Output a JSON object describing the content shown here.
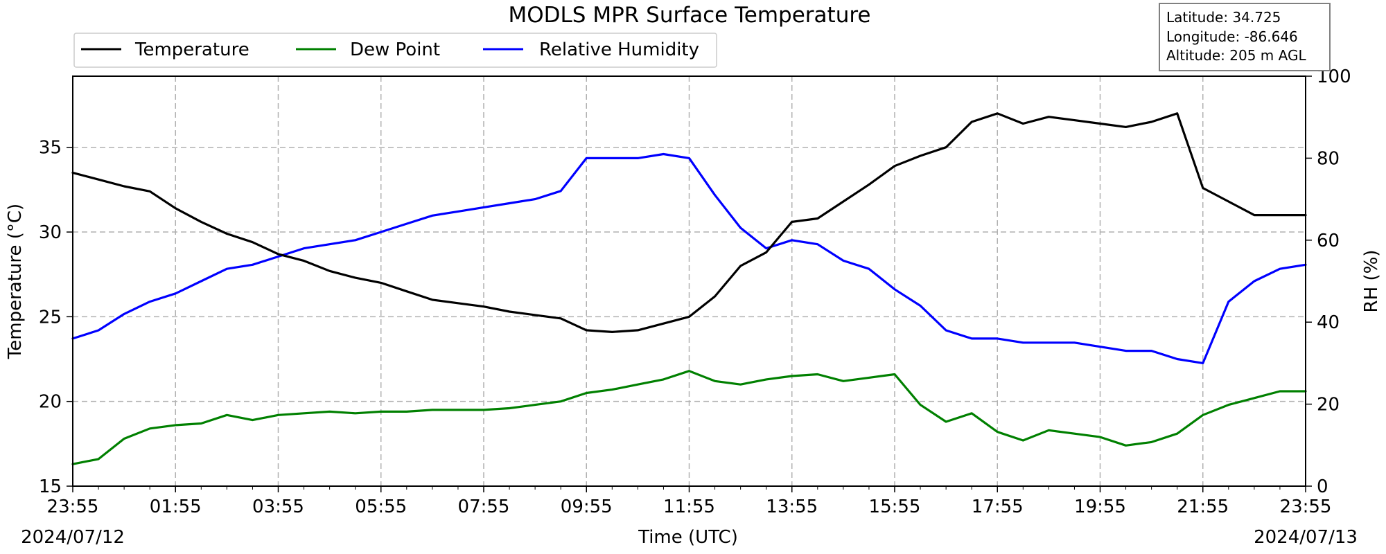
{
  "chart_data": {
    "type": "line",
    "title": "MODLS MPR Surface Temperature",
    "xlabel": "Time (UTC)",
    "ylabel": "Temperature (°C)",
    "ylabel_right": "RH (%)",
    "start_date": "2024/07/12",
    "end_date": "2024/07/13",
    "x_ticks": [
      "23:55",
      "01:55",
      "03:55",
      "05:55",
      "07:55",
      "09:55",
      "11:55",
      "13:55",
      "15:55",
      "17:55",
      "19:55",
      "21:55",
      "23:55"
    ],
    "x_range_hours": [
      0,
      24
    ],
    "y_left_ticks": [
      "15",
      "20",
      "25",
      "30",
      "35"
    ],
    "y_left_range": [
      15,
      39.2
    ],
    "y_right_ticks": [
      "0",
      "20",
      "40",
      "60",
      "80",
      "100"
    ],
    "y_right_range": [
      0,
      100
    ],
    "grid": true,
    "legend_position": "top-left",
    "info_box": {
      "latitude": "Latitude: 34.725",
      "longitude": "Longitude: -86.646",
      "altitude": "Altitude: 205 m AGL"
    },
    "x": [
      "23:55",
      "00:25",
      "00:55",
      "01:25",
      "01:55",
      "02:25",
      "02:55",
      "03:25",
      "03:55",
      "04:25",
      "04:55",
      "05:25",
      "05:55",
      "06:25",
      "06:55",
      "07:25",
      "07:55",
      "08:25",
      "08:55",
      "09:25",
      "09:55",
      "10:25",
      "10:55",
      "11:25",
      "11:55",
      "12:25",
      "12:55",
      "13:25",
      "13:55",
      "14:25",
      "14:55",
      "15:25",
      "15:55",
      "16:25",
      "16:55",
      "17:25",
      "17:55",
      "18:25",
      "18:55",
      "19:25",
      "19:55",
      "20:25",
      "20:55",
      "21:25",
      "21:55",
      "22:25",
      "22:55",
      "23:25",
      "23:55"
    ],
    "series": [
      {
        "name": "Temperature",
        "axis": "left",
        "color": "#000000",
        "values": [
          33.5,
          33.1,
          32.7,
          32.4,
          31.4,
          30.6,
          29.9,
          29.4,
          28.7,
          28.3,
          27.7,
          27.3,
          27.0,
          26.5,
          26.0,
          25.8,
          25.6,
          25.3,
          25.1,
          24.9,
          24.2,
          24.1,
          24.2,
          24.6,
          25.0,
          26.2,
          28.0,
          28.8,
          30.6,
          30.8,
          31.8,
          32.8,
          33.9,
          34.5,
          35.0,
          36.5,
          37.0,
          36.4,
          36.8,
          36.6,
          36.4,
          36.2,
          36.5,
          37.0,
          32.6,
          31.8,
          31.0,
          31.0,
          31.0
        ]
      },
      {
        "name": "Dew Point",
        "axis": "left",
        "color": "#008000",
        "values": [
          16.3,
          16.6,
          17.8,
          18.4,
          18.6,
          18.7,
          19.2,
          18.9,
          19.2,
          19.3,
          19.4,
          19.3,
          19.4,
          19.4,
          19.5,
          19.5,
          19.5,
          19.6,
          19.8,
          20.0,
          20.5,
          20.7,
          21.0,
          21.3,
          21.8,
          21.2,
          21.0,
          21.3,
          21.5,
          21.6,
          21.2,
          21.4,
          21.6,
          19.8,
          18.8,
          19.3,
          18.2,
          17.7,
          18.3,
          18.1,
          17.9,
          17.4,
          17.6,
          18.1,
          19.2,
          19.8,
          20.2,
          20.6,
          20.6
        ]
      },
      {
        "name": "Relative Humidity",
        "axis": "right",
        "color": "#0000ff",
        "values": [
          36,
          38,
          42,
          45,
          47,
          50,
          53,
          54,
          56,
          58,
          59,
          60,
          62,
          64,
          66,
          67,
          68,
          69,
          70,
          72,
          80,
          80,
          80,
          81,
          80,
          71,
          63,
          58,
          60,
          59,
          55,
          53,
          48,
          44,
          38,
          36,
          36,
          35,
          35,
          35,
          34,
          33,
          33,
          31,
          30,
          45,
          50,
          53,
          54
        ]
      }
    ]
  }
}
